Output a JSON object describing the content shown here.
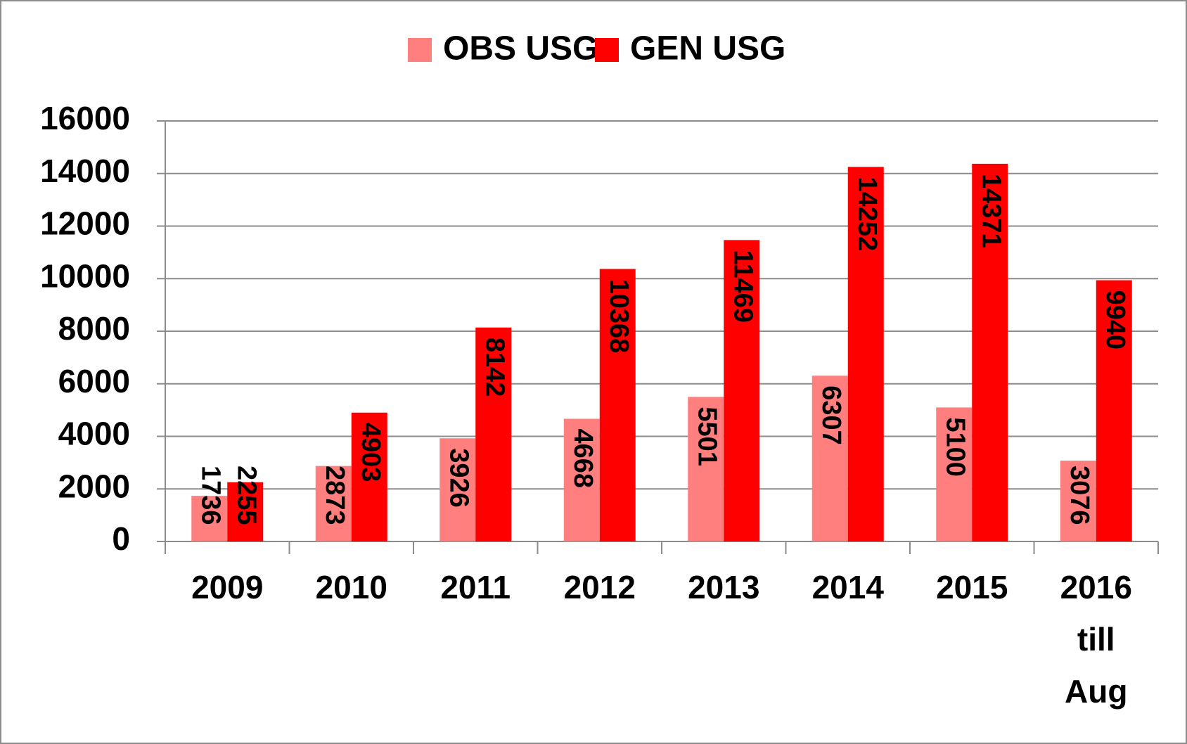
{
  "chart_data": {
    "type": "bar",
    "categories": [
      "2009",
      "2010",
      "2011",
      "2012",
      "2013",
      "2014",
      "2015",
      "2016 till Aug"
    ],
    "series": [
      {
        "name": "OBS USG",
        "color": "#ff7f7f",
        "values": [
          1736,
          2873,
          3926,
          4668,
          5501,
          6307,
          5100,
          3076
        ]
      },
      {
        "name": "GEN USG",
        "color": "#ff0000",
        "values": [
          2255,
          4903,
          8142,
          10368,
          11469,
          14252,
          14371,
          9940
        ]
      }
    ],
    "ylim": [
      0,
      16000
    ],
    "yticks": [
      0,
      2000,
      4000,
      6000,
      8000,
      10000,
      12000,
      14000,
      16000
    ],
    "grid": true,
    "legend": "top"
  }
}
